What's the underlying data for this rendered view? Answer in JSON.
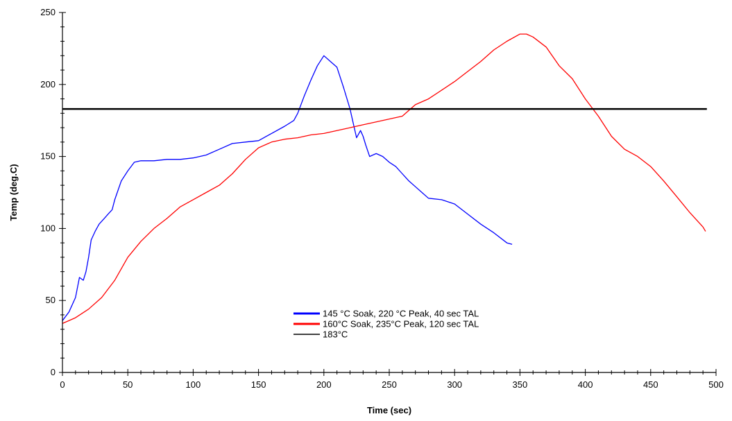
{
  "chart_data": {
    "type": "line",
    "xlabel": "Time (sec)",
    "ylabel": "Temp (deg.C)",
    "xlim": [
      0,
      500
    ],
    "ylim": [
      0,
      250
    ],
    "xticks": [
      0,
      50,
      100,
      150,
      200,
      250,
      300,
      350,
      400,
      450,
      500
    ],
    "yticks": [
      0,
      50,
      100,
      150,
      200,
      250
    ],
    "grid": false,
    "legend_position": "bottom-center",
    "series": [
      {
        "name": "145 °C Soak, 220 °C Peak, 40 sec TAL",
        "color": "#0000ff",
        "points": [
          [
            0,
            36
          ],
          [
            5,
            42
          ],
          [
            10,
            52
          ],
          [
            13,
            66
          ],
          [
            16,
            64
          ],
          [
            18,
            70
          ],
          [
            20,
            80
          ],
          [
            22,
            92
          ],
          [
            25,
            98
          ],
          [
            28,
            103
          ],
          [
            32,
            107
          ],
          [
            35,
            110
          ],
          [
            38,
            113
          ],
          [
            40,
            120
          ],
          [
            45,
            133
          ],
          [
            50,
            140
          ],
          [
            55,
            146
          ],
          [
            60,
            147
          ],
          [
            70,
            147
          ],
          [
            80,
            148
          ],
          [
            90,
            148
          ],
          [
            100,
            149
          ],
          [
            110,
            151
          ],
          [
            120,
            155
          ],
          [
            130,
            159
          ],
          [
            140,
            160
          ],
          [
            150,
            161
          ],
          [
            160,
            166
          ],
          [
            170,
            171
          ],
          [
            177,
            175
          ],
          [
            180,
            180
          ],
          [
            185,
            192
          ],
          [
            190,
            203
          ],
          [
            195,
            213
          ],
          [
            200,
            220
          ],
          [
            205,
            216
          ],
          [
            210,
            212
          ],
          [
            215,
            198
          ],
          [
            220,
            183
          ],
          [
            222,
            175
          ],
          [
            225,
            163
          ],
          [
            228,
            168
          ],
          [
            230,
            164
          ],
          [
            232,
            158
          ],
          [
            235,
            150
          ],
          [
            240,
            152
          ],
          [
            245,
            150
          ],
          [
            250,
            146
          ],
          [
            255,
            143
          ],
          [
            260,
            138
          ],
          [
            265,
            133
          ],
          [
            270,
            129
          ],
          [
            275,
            125
          ],
          [
            280,
            121
          ],
          [
            290,
            120
          ],
          [
            300,
            117
          ],
          [
            310,
            110
          ],
          [
            320,
            103
          ],
          [
            330,
            97
          ],
          [
            340,
            90
          ],
          [
            344,
            89
          ]
        ]
      },
      {
        "name": "160°C Soak, 235°C Peak, 120 sec TAL",
        "color": "#ff0000",
        "points": [
          [
            0,
            34
          ],
          [
            10,
            38
          ],
          [
            20,
            44
          ],
          [
            30,
            52
          ],
          [
            40,
            64
          ],
          [
            50,
            80
          ],
          [
            60,
            91
          ],
          [
            70,
            100
          ],
          [
            80,
            107
          ],
          [
            90,
            115
          ],
          [
            100,
            120
          ],
          [
            110,
            125
          ],
          [
            120,
            130
          ],
          [
            130,
            138
          ],
          [
            140,
            148
          ],
          [
            150,
            156
          ],
          [
            160,
            160
          ],
          [
            170,
            162
          ],
          [
            180,
            163
          ],
          [
            190,
            165
          ],
          [
            200,
            166
          ],
          [
            210,
            168
          ],
          [
            220,
            170
          ],
          [
            230,
            172
          ],
          [
            240,
            174
          ],
          [
            250,
            176
          ],
          [
            260,
            178
          ],
          [
            270,
            186
          ],
          [
            280,
            190
          ],
          [
            290,
            196
          ],
          [
            300,
            202
          ],
          [
            310,
            209
          ],
          [
            320,
            216
          ],
          [
            330,
            224
          ],
          [
            340,
            230
          ],
          [
            350,
            235
          ],
          [
            355,
            235
          ],
          [
            360,
            233
          ],
          [
            370,
            226
          ],
          [
            380,
            213
          ],
          [
            390,
            204
          ],
          [
            400,
            190
          ],
          [
            410,
            178
          ],
          [
            420,
            164
          ],
          [
            430,
            155
          ],
          [
            440,
            150
          ],
          [
            450,
            143
          ],
          [
            460,
            133
          ],
          [
            470,
            122
          ],
          [
            480,
            111
          ],
          [
            490,
            101
          ],
          [
            492,
            98
          ]
        ]
      },
      {
        "name": "183°C",
        "color": "#000000",
        "points": [
          [
            0,
            183
          ],
          [
            493,
            183
          ]
        ]
      }
    ]
  }
}
